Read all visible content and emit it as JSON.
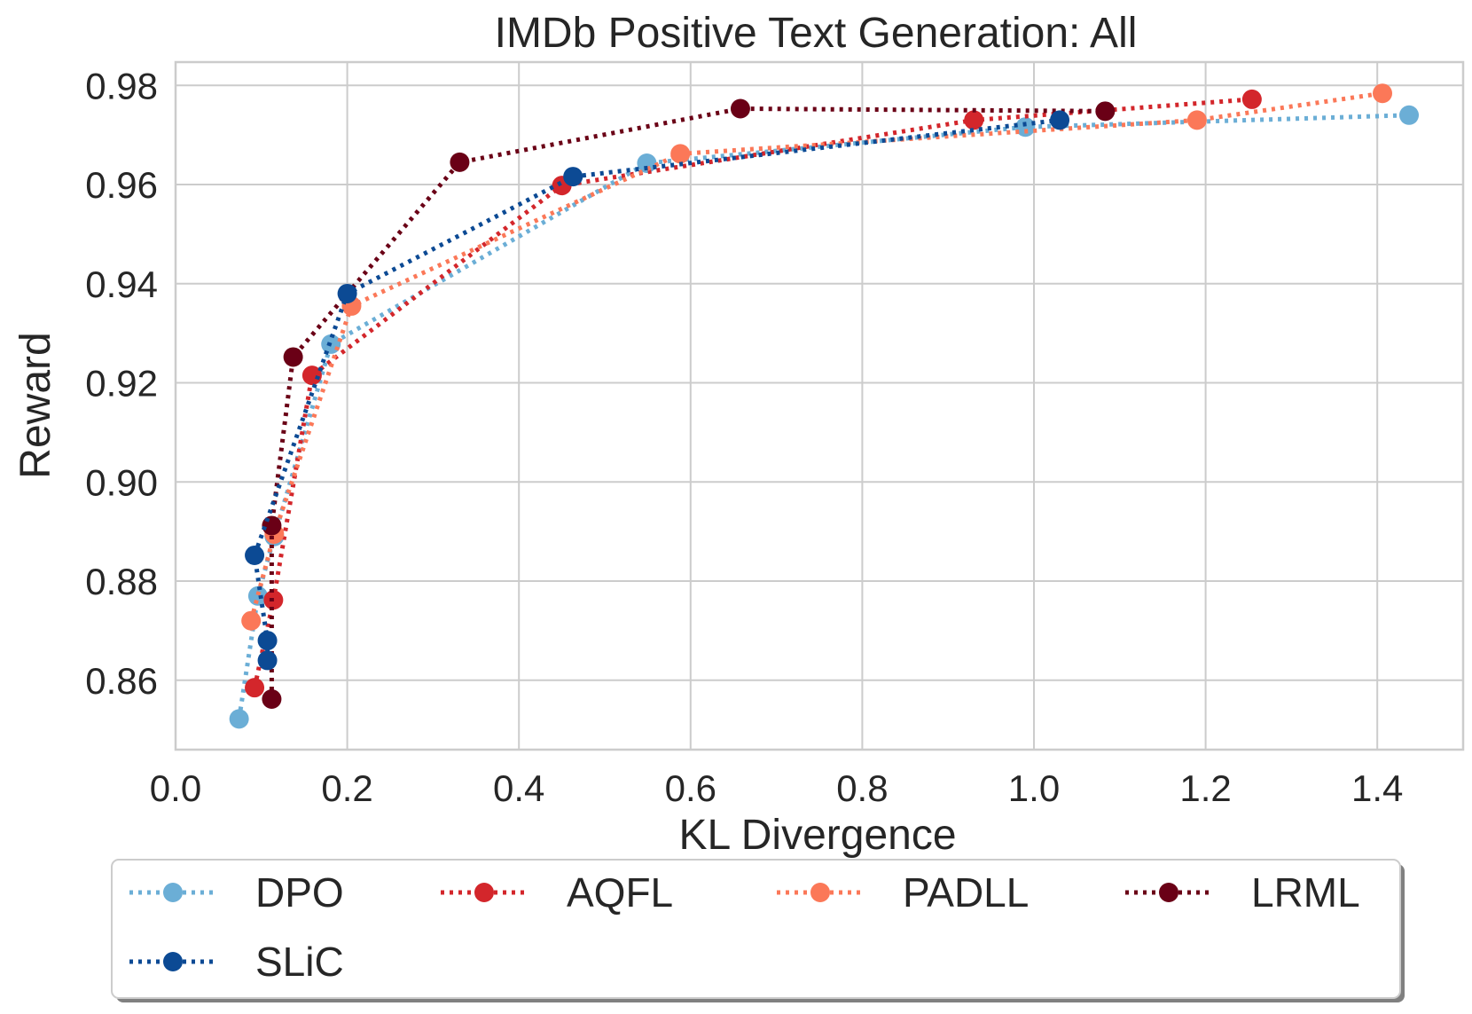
{
  "chart_data": {
    "type": "line",
    "title": "IMDb Positive Text Generation: All",
    "xlabel": "KL Divergence",
    "ylabel": "Reward",
    "xlim": [
      0.0,
      1.5
    ],
    "ylim": [
      0.846,
      0.9847
    ],
    "xticks": [
      0.0,
      0.2,
      0.4,
      0.6,
      0.8,
      1.0,
      1.2,
      1.4
    ],
    "xtick_labels": [
      "0.0",
      "0.2",
      "0.4",
      "0.6",
      "0.8",
      "1.0",
      "1.2",
      "1.4"
    ],
    "yticks": [
      0.86,
      0.88,
      0.9,
      0.92,
      0.94,
      0.96,
      0.98
    ],
    "ytick_labels": [
      "0.86",
      "0.88",
      "0.90",
      "0.92",
      "0.94",
      "0.96",
      "0.98"
    ],
    "grid": true,
    "line_style": "dotted",
    "marker": "circle",
    "legend": {
      "position": "bottom",
      "columns": 4,
      "shadow": true
    },
    "series": [
      {
        "name": "DPO",
        "color": "#6baed6",
        "points": [
          [
            0.074,
            0.8522
          ],
          [
            0.096,
            0.877
          ],
          [
            0.115,
            0.889
          ],
          [
            0.181,
            0.9278
          ],
          [
            0.549,
            0.9643
          ],
          [
            0.99,
            0.9716
          ],
          [
            1.437,
            0.974
          ]
        ]
      },
      {
        "name": "AQFL",
        "color": "#d3262b",
        "points": [
          [
            0.092,
            0.8585
          ],
          [
            0.114,
            0.8762
          ],
          [
            0.159,
            0.9215
          ],
          [
            0.45,
            0.9598
          ],
          [
            0.93,
            0.973
          ],
          [
            1.254,
            0.9772
          ]
        ]
      },
      {
        "name": "PADLL",
        "color": "#fb7858",
        "points": [
          [
            0.088,
            0.872
          ],
          [
            0.115,
            0.8895
          ],
          [
            0.205,
            0.9355
          ],
          [
            0.588,
            0.9662
          ],
          [
            1.19,
            0.973
          ],
          [
            1.406,
            0.9784
          ]
        ]
      },
      {
        "name": "LRML",
        "color": "#6a0016",
        "points": [
          [
            0.112,
            0.8562
          ],
          [
            0.112,
            0.8912
          ],
          [
            0.137,
            0.9252
          ],
          [
            0.331,
            0.9645
          ],
          [
            0.658,
            0.9753
          ],
          [
            1.083,
            0.9748
          ]
        ]
      },
      {
        "name": "SLiC",
        "color": "#0c4a94",
        "points": [
          [
            0.107,
            0.864
          ],
          [
            0.107,
            0.868
          ],
          [
            0.092,
            0.8852
          ],
          [
            0.2,
            0.938
          ],
          [
            0.463,
            0.9616
          ],
          [
            1.03,
            0.973
          ]
        ]
      }
    ]
  }
}
